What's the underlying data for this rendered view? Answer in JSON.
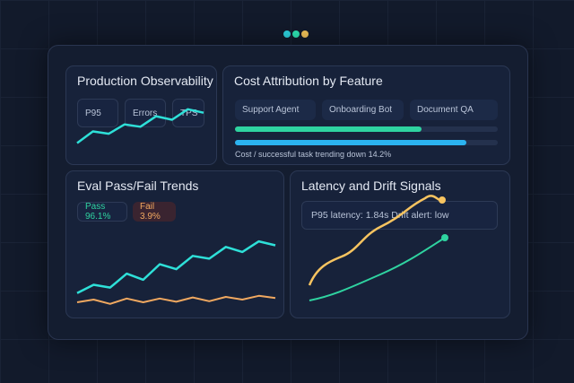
{
  "window": {
    "dots": [
      "#2dd4e0",
      "#2ee6b5",
      "#f5c55a"
    ]
  },
  "observability": {
    "title": "Production Observability",
    "chips": [
      "P95",
      "Errors",
      "TPS"
    ],
    "trend": [
      1,
      3,
      2.6,
      4.2,
      3.8,
      5.6,
      5,
      6.8,
      6.2
    ]
  },
  "cost": {
    "title": "Cost Attribution by Feature",
    "chips": [
      "Support Agent",
      "Onboarding Bot",
      "Document QA"
    ],
    "bars": [
      {
        "fraction": 0.71,
        "color": "#2fd3a0"
      },
      {
        "fraction": 0.88,
        "color": "#2bb3f0"
      }
    ],
    "caption": "Cost / successful task trending down 14.2%"
  },
  "eval": {
    "title": "Eval Pass/Fail Trends",
    "pass_label": "Pass 96.1%",
    "fail_label": "Fail 3.9%",
    "pass": [
      1,
      2.5,
      2,
      4.5,
      3.4,
      6.2,
      5.3,
      7.7,
      7.2,
      9.3,
      8.4,
      10.3,
      9.6
    ],
    "fail": [
      0.5,
      1,
      0.2,
      1.2,
      0.5,
      1.2,
      0.6,
      1.4,
      0.7,
      1.5,
      1,
      1.7,
      1.3
    ]
  },
  "latency": {
    "title": "Latency and Drift Signals",
    "readout": "P95 latency: 1.84s Drift alert: low"
  }
}
